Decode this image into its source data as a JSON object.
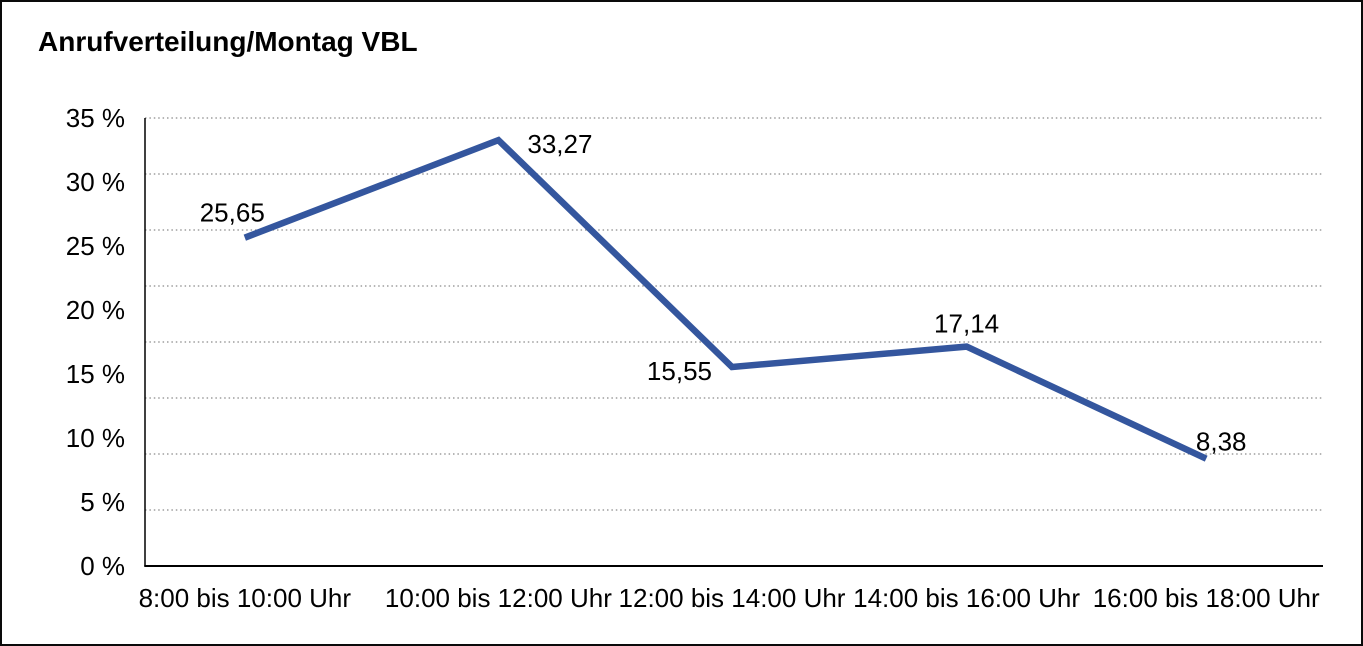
{
  "title": "Anrufverteilung/Montag VBL",
  "chart_data": {
    "type": "line",
    "title": "Anrufverteilung/Montag VBL",
    "categories": [
      "8:00 bis 10:00 Uhr",
      "10:00 bis 12:00 Uhr",
      "12:00 bis 14:00 Uhr",
      "14:00 bis 16:00 Uhr",
      "16:00 bis 18:00 Uhr"
    ],
    "values": [
      25.65,
      33.27,
      15.55,
      17.14,
      8.38
    ],
    "point_labels": [
      "25,65",
      "33,27",
      "15,55",
      "17,14",
      "8,38"
    ],
    "xlabel": "",
    "ylabel": "",
    "ylim": [
      0,
      35
    ],
    "yticks": [
      0,
      5,
      10,
      15,
      20,
      25,
      30,
      35
    ],
    "ytick_labels": [
      "0 %",
      "5 %",
      "10 %",
      "15 %",
      "20 %",
      "25 %",
      "30 %",
      "35 %"
    ],
    "grid": "horizontal-dotted",
    "grid_divisions": 8,
    "legend": "none",
    "markers": "none"
  },
  "colors": {
    "line": "#34569e",
    "grid": "#8a8a8a",
    "axis": "#000000",
    "text": "#000000",
    "background": "#ffffff",
    "border": "#0a0a0a"
  }
}
